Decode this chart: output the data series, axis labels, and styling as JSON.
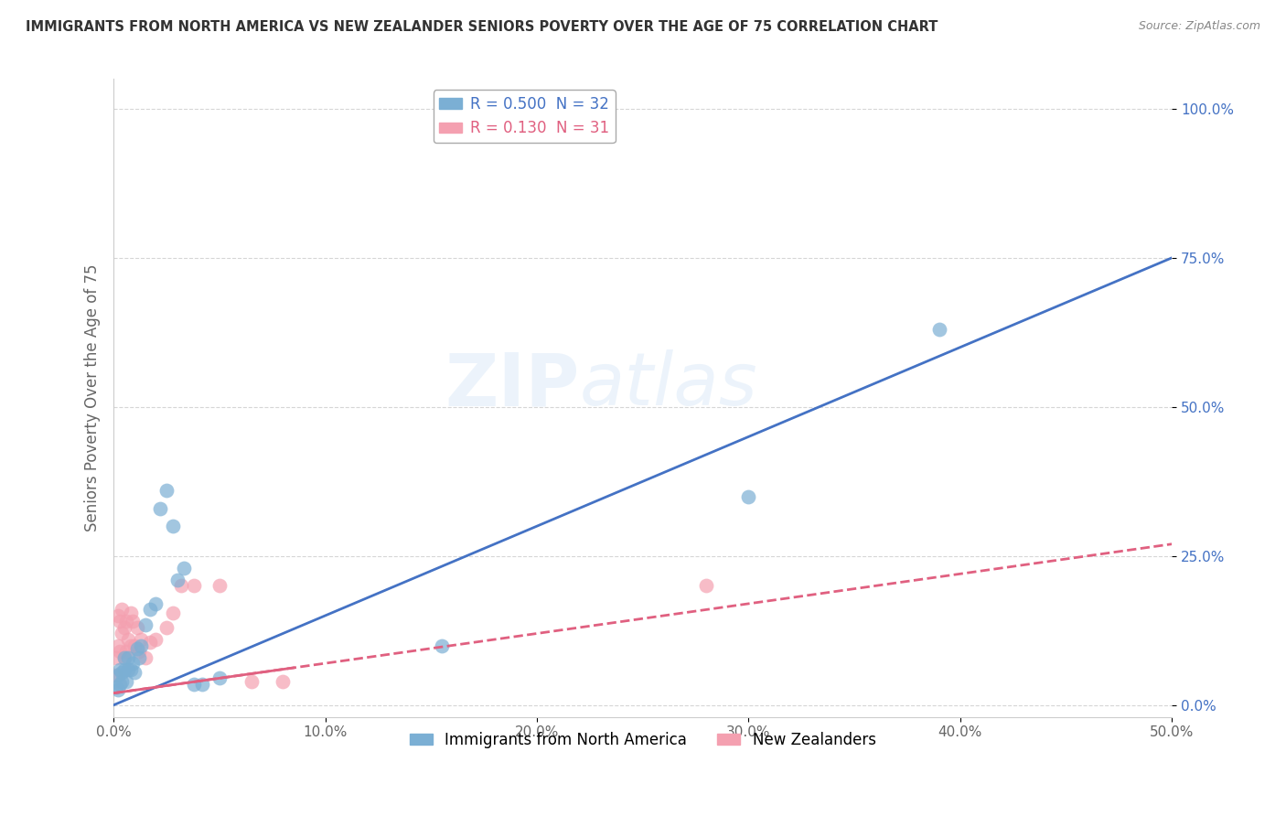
{
  "title": "IMMIGRANTS FROM NORTH AMERICA VS NEW ZEALANDER SENIORS POVERTY OVER THE AGE OF 75 CORRELATION CHART",
  "source": "Source: ZipAtlas.com",
  "ylabel": "Seniors Poverty Over the Age of 75",
  "xlabel": "",
  "xlim": [
    0.0,
    0.5
  ],
  "ylim": [
    -0.02,
    1.05
  ],
  "xticks": [
    0.0,
    0.1,
    0.2,
    0.3,
    0.4,
    0.5
  ],
  "xticklabels": [
    "0.0%",
    "10.0%",
    "20.0%",
    "30.0%",
    "40.0%",
    "50.0%"
  ],
  "yticks": [
    0.0,
    0.25,
    0.5,
    0.75,
    1.0
  ],
  "yticklabels": [
    "0.0%",
    "25.0%",
    "50.0%",
    "75.0%",
    "100.0%"
  ],
  "blue_R": 0.5,
  "blue_N": 32,
  "pink_R": 0.13,
  "pink_N": 31,
  "blue_color": "#7BAFD4",
  "pink_color": "#F4A0B0",
  "blue_line_color": "#4472C4",
  "pink_line_color": "#E06080",
  "legend_label_blue": "Immigrants from North America",
  "legend_label_pink": "New Zealanders",
  "blue_scatter_x": [
    0.001,
    0.002,
    0.002,
    0.003,
    0.003,
    0.004,
    0.004,
    0.005,
    0.005,
    0.006,
    0.007,
    0.007,
    0.008,
    0.009,
    0.01,
    0.011,
    0.012,
    0.013,
    0.015,
    0.017,
    0.02,
    0.022,
    0.025,
    0.028,
    0.03,
    0.033,
    0.038,
    0.042,
    0.05,
    0.155,
    0.39,
    0.3
  ],
  "blue_scatter_y": [
    0.03,
    0.025,
    0.05,
    0.035,
    0.06,
    0.04,
    0.055,
    0.06,
    0.08,
    0.04,
    0.06,
    0.08,
    0.06,
    0.07,
    0.055,
    0.095,
    0.08,
    0.1,
    0.135,
    0.16,
    0.17,
    0.33,
    0.36,
    0.3,
    0.21,
    0.23,
    0.035,
    0.035,
    0.045,
    0.1,
    0.63,
    0.35
  ],
  "pink_scatter_x": [
    0.001,
    0.001,
    0.002,
    0.002,
    0.003,
    0.003,
    0.004,
    0.004,
    0.005,
    0.005,
    0.006,
    0.006,
    0.007,
    0.008,
    0.008,
    0.009,
    0.01,
    0.011,
    0.012,
    0.013,
    0.015,
    0.017,
    0.02,
    0.025,
    0.028,
    0.032,
    0.038,
    0.05,
    0.065,
    0.08,
    0.28
  ],
  "pink_scatter_y": [
    0.05,
    0.08,
    0.1,
    0.15,
    0.09,
    0.14,
    0.12,
    0.16,
    0.08,
    0.13,
    0.09,
    0.14,
    0.11,
    0.1,
    0.155,
    0.14,
    0.1,
    0.13,
    0.09,
    0.11,
    0.08,
    0.105,
    0.11,
    0.13,
    0.155,
    0.2,
    0.2,
    0.2,
    0.04,
    0.04,
    0.2
  ],
  "blue_line_x0": 0.0,
  "blue_line_y0": 0.0,
  "blue_line_x1": 0.5,
  "blue_line_y1": 0.75,
  "pink_line_x0": 0.0,
  "pink_line_y0": 0.02,
  "pink_line_x1": 0.5,
  "pink_line_y1": 0.27,
  "watermark_zip": "ZIP",
  "watermark_atlas": "atlas",
  "background_color": "#FFFFFF",
  "grid_color": "#CCCCCC"
}
